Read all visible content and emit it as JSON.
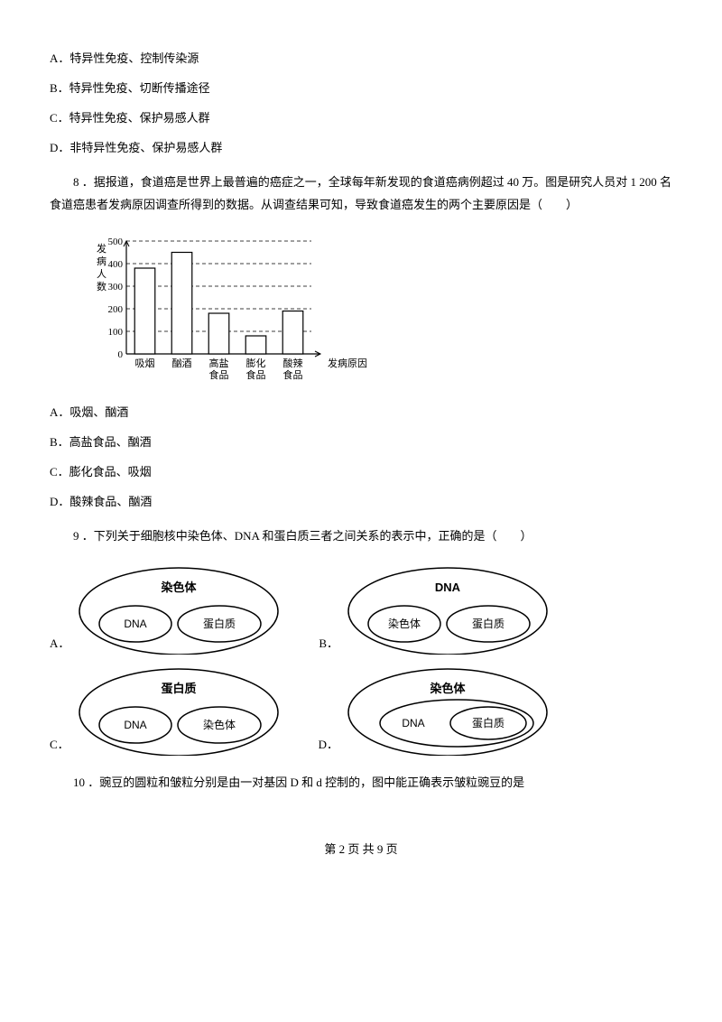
{
  "q7_options": {
    "A": "A．特异性免疫、控制传染源",
    "B": "B．特异性免疫、切断传播途径",
    "C": "C．特异性免疫、保护易感人群",
    "D": "D．非特异性免疫、保护易感人群"
  },
  "q8": {
    "text": "8 ．据报道，食道癌是世界上最普遍的癌症之一，全球每年新发现的食道癌病例超过 40 万。图是研究人员对 1 200 名食道癌患者发病原因调查所得到的数据。从调查结果可知，导致食道癌发生的两个主要原因是（　　）",
    "options": {
      "A": "A．吸烟、酗酒",
      "B": "B．高盐食品、酗酒",
      "C": "C．膨化食品、吸烟",
      "D": "D．酸辣食品、酗酒"
    }
  },
  "chart": {
    "type": "bar",
    "y_label_top": "发",
    "y_label_2": "病",
    "y_label_3": "人",
    "y_label_4": "数",
    "x_label": "发病原因",
    "categories": [
      "吸烟",
      "酗酒",
      "高盐食品",
      "膨化食品",
      "酸辣食品"
    ],
    "values": [
      380,
      450,
      180,
      80,
      190
    ],
    "y_ticks": [
      0,
      100,
      200,
      300,
      400,
      500
    ],
    "ylim": [
      0,
      500
    ],
    "bar_color": "#ffffff",
    "bar_border_color": "#000000",
    "grid_color": "#000000",
    "grid_dash": "4 3",
    "background_color": "#ffffff",
    "axis_color": "#000000",
    "bar_width_ratio": 0.55,
    "label_fontsize": 11
  },
  "q9": {
    "text": "9 ．下列关于细胞核中染色体、DNA 和蛋白质三者之间关系的表示中，正确的是（　　）",
    "labels": {
      "A": "A．",
      "B": "B．",
      "C": "C．",
      "D": "D．"
    }
  },
  "diagrams": {
    "A": {
      "outer": "染色体",
      "left": "DNA",
      "right": "蛋白质",
      "nested": false
    },
    "B": {
      "outer": "DNA",
      "left": "染色体",
      "right": "蛋白质",
      "nested": false
    },
    "C": {
      "outer": "蛋白质",
      "left": "DNA",
      "right": "染色体",
      "nested": false
    },
    "D": {
      "outer": "染色体",
      "left": "DNA",
      "right": "蛋白质",
      "nested": true
    }
  },
  "diagram_style": {
    "outer_rx": 110,
    "outer_ry": 48,
    "inner_rx": 40,
    "inner_ry": 20,
    "stroke": "#000000",
    "fill": "#ffffff",
    "stroke_width": 1.5,
    "text_color": "#000000",
    "outer_fontsize": 13,
    "inner_fontsize": 12
  },
  "q10": {
    "text": "10 ．豌豆的圆粒和皱粒分别是由一对基因 D 和 d 控制的，图中能正确表示皱粒豌豆的是"
  },
  "footer": "第 2 页 共 9 页"
}
